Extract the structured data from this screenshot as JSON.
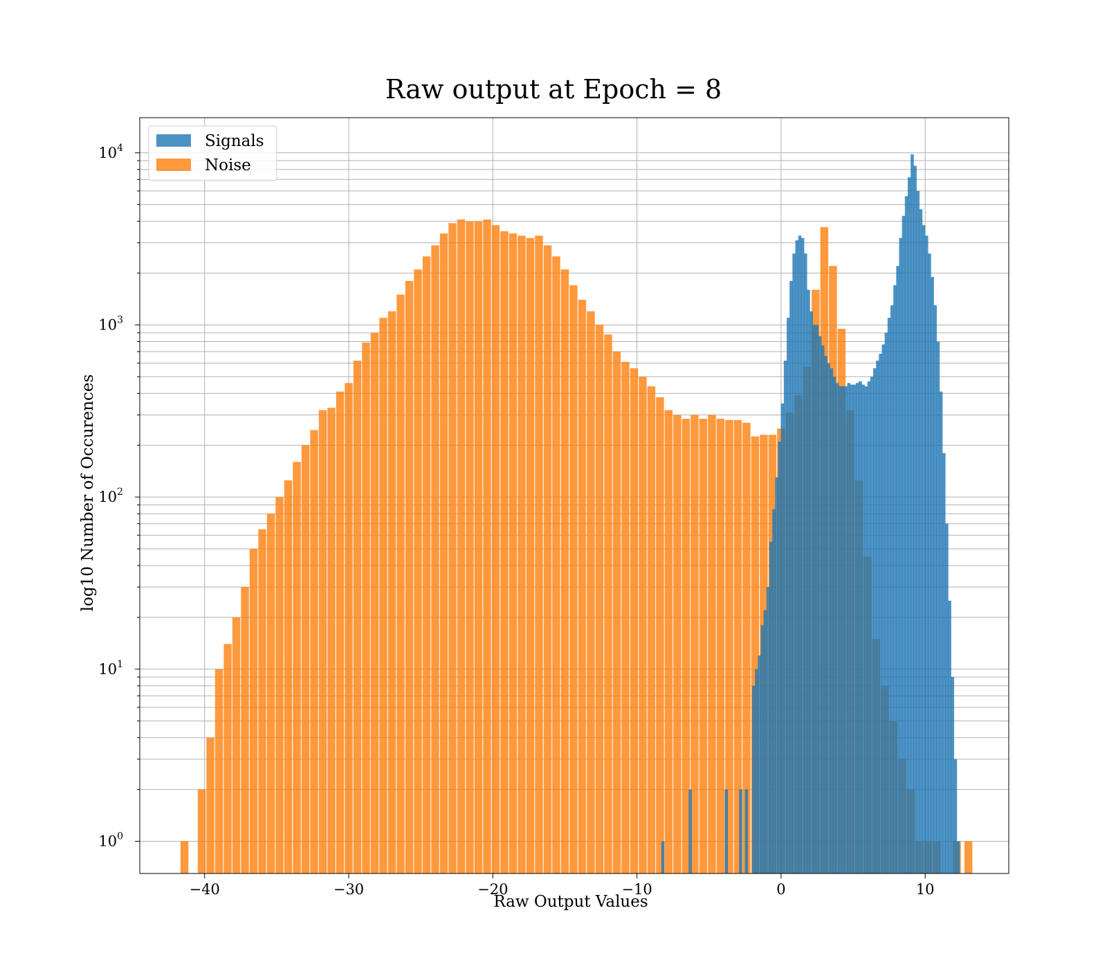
{
  "chart_data": {
    "type": "bar",
    "title": "Raw output at Epoch = 8",
    "xlabel": "Raw Output Values",
    "ylabel": "log10 Number of Occurences",
    "xlim": [
      -44.5,
      15.8
    ],
    "ylim": [
      0.65,
      16000
    ],
    "yscale": "log",
    "grid": true,
    "legend_position": "upper-left",
    "x_ticks": [
      -40,
      -30,
      -20,
      -10,
      0,
      10
    ],
    "x_tick_labels": [
      "−40",
      "−30",
      "−20",
      "−10",
      "0",
      "10"
    ],
    "y_ticks": [
      {
        "value": 1,
        "base": "10",
        "exp": "0"
      },
      {
        "value": 10,
        "base": "10",
        "exp": "1"
      },
      {
        "value": 100,
        "base": "10",
        "exp": "2"
      },
      {
        "value": 1000,
        "base": "10",
        "exp": "3"
      },
      {
        "value": 10000,
        "base": "10",
        "exp": "4"
      }
    ],
    "series": [
      {
        "name": "Signals",
        "color": "#1f77b4",
        "bin_width": 0.22,
        "bars": [
          [
            -8.2,
            1
          ],
          [
            -6.3,
            2
          ],
          [
            -3.8,
            2
          ],
          [
            -2.8,
            2
          ],
          [
            -2.4,
            2
          ],
          [
            -1.9,
            8
          ],
          [
            -1.7,
            10
          ],
          [
            -1.5,
            12
          ],
          [
            -1.3,
            18
          ],
          [
            -1.1,
            22
          ],
          [
            -0.9,
            30
          ],
          [
            -0.7,
            55
          ],
          [
            -0.5,
            85
          ],
          [
            -0.3,
            130
          ],
          [
            -0.1,
            210
          ],
          [
            0.1,
            350
          ],
          [
            0.3,
            620
          ],
          [
            0.5,
            1100
          ],
          [
            0.7,
            1800
          ],
          [
            0.9,
            2600
          ],
          [
            1.1,
            3100
          ],
          [
            1.3,
            3300
          ],
          [
            1.5,
            3200
          ],
          [
            1.7,
            2600
          ],
          [
            1.9,
            1600
          ],
          [
            2.1,
            1200
          ],
          [
            2.3,
            1000
          ],
          [
            2.5,
            1000
          ],
          [
            2.7,
            860
          ],
          [
            2.9,
            760
          ],
          [
            3.1,
            660
          ],
          [
            3.3,
            600
          ],
          [
            3.5,
            560
          ],
          [
            3.7,
            500
          ],
          [
            3.9,
            460
          ],
          [
            4.1,
            440
          ],
          [
            4.3,
            440
          ],
          [
            4.5,
            440
          ],
          [
            4.7,
            460
          ],
          [
            4.9,
            450
          ],
          [
            5.1,
            450
          ],
          [
            5.3,
            460
          ],
          [
            5.5,
            470
          ],
          [
            5.7,
            450
          ],
          [
            5.9,
            440
          ],
          [
            6.1,
            470
          ],
          [
            6.3,
            500
          ],
          [
            6.5,
            560
          ],
          [
            6.7,
            620
          ],
          [
            6.9,
            680
          ],
          [
            7.1,
            770
          ],
          [
            7.3,
            900
          ],
          [
            7.5,
            1100
          ],
          [
            7.7,
            1300
          ],
          [
            7.9,
            1700
          ],
          [
            8.1,
            2200
          ],
          [
            8.3,
            3200
          ],
          [
            8.5,
            4300
          ],
          [
            8.7,
            5600
          ],
          [
            8.9,
            7200
          ],
          [
            9.1,
            9800
          ],
          [
            9.3,
            8400
          ],
          [
            9.5,
            6000
          ],
          [
            9.7,
            4700
          ],
          [
            9.9,
            3800
          ],
          [
            10.1,
            3300
          ],
          [
            10.3,
            2600
          ],
          [
            10.5,
            1900
          ],
          [
            10.7,
            1300
          ],
          [
            10.9,
            800
          ],
          [
            11.1,
            410
          ],
          [
            11.3,
            180
          ],
          [
            11.5,
            70
          ],
          [
            11.7,
            25
          ],
          [
            11.9,
            9
          ],
          [
            12.1,
            3
          ],
          [
            12.3,
            1
          ]
        ]
      },
      {
        "name": "Noise",
        "color": "#ff7f0e",
        "bin_width": 0.55,
        "bars": [
          [
            -41.4,
            1
          ],
          [
            -40.2,
            2
          ],
          [
            -39.6,
            4
          ],
          [
            -39.0,
            10
          ],
          [
            -38.4,
            14
          ],
          [
            -37.8,
            20
          ],
          [
            -37.2,
            30
          ],
          [
            -36.6,
            50
          ],
          [
            -36.0,
            65
          ],
          [
            -35.4,
            80
          ],
          [
            -34.8,
            100
          ],
          [
            -34.2,
            125
          ],
          [
            -33.6,
            160
          ],
          [
            -33.0,
            200
          ],
          [
            -32.4,
            245
          ],
          [
            -31.8,
            320
          ],
          [
            -31.2,
            330
          ],
          [
            -30.6,
            410
          ],
          [
            -30.0,
            460
          ],
          [
            -29.4,
            620
          ],
          [
            -28.8,
            790
          ],
          [
            -28.2,
            900
          ],
          [
            -27.6,
            1100
          ],
          [
            -27.0,
            1200
          ],
          [
            -26.4,
            1500
          ],
          [
            -25.8,
            1800
          ],
          [
            -25.2,
            2100
          ],
          [
            -24.6,
            2500
          ],
          [
            -24.0,
            2900
          ],
          [
            -23.4,
            3400
          ],
          [
            -22.8,
            3900
          ],
          [
            -22.2,
            4100
          ],
          [
            -21.6,
            4000
          ],
          [
            -21.0,
            4000
          ],
          [
            -20.4,
            4100
          ],
          [
            -19.8,
            3800
          ],
          [
            -19.2,
            3500
          ],
          [
            -18.6,
            3400
          ],
          [
            -18.0,
            3300
          ],
          [
            -17.4,
            3200
          ],
          [
            -16.8,
            3300
          ],
          [
            -16.2,
            2900
          ],
          [
            -15.6,
            2500
          ],
          [
            -15.0,
            2100
          ],
          [
            -14.4,
            1700
          ],
          [
            -13.8,
            1400
          ],
          [
            -13.2,
            1200
          ],
          [
            -12.6,
            1000
          ],
          [
            -12.0,
            880
          ],
          [
            -11.4,
            700
          ],
          [
            -10.8,
            610
          ],
          [
            -10.2,
            560
          ],
          [
            -9.6,
            500
          ],
          [
            -9.0,
            440
          ],
          [
            -8.4,
            380
          ],
          [
            -7.8,
            320
          ],
          [
            -7.2,
            300
          ],
          [
            -6.6,
            285
          ],
          [
            -6.0,
            300
          ],
          [
            -5.4,
            285
          ],
          [
            -4.8,
            300
          ],
          [
            -4.2,
            285
          ],
          [
            -3.6,
            280
          ],
          [
            -3.0,
            280
          ],
          [
            -2.4,
            270
          ],
          [
            -1.8,
            225
          ],
          [
            -1.2,
            230
          ],
          [
            -0.6,
            230
          ],
          [
            0.0,
            250
          ],
          [
            0.6,
            310
          ],
          [
            1.2,
            390
          ],
          [
            1.8,
            570
          ],
          [
            2.4,
            1600
          ],
          [
            3.0,
            3700
          ],
          [
            3.6,
            2200
          ],
          [
            4.2,
            950
          ],
          [
            4.8,
            320
          ],
          [
            5.4,
            125
          ],
          [
            6.0,
            45
          ],
          [
            6.6,
            15
          ],
          [
            7.2,
            8
          ],
          [
            7.8,
            5
          ],
          [
            8.4,
            3
          ],
          [
            9.0,
            2
          ],
          [
            9.6,
            1
          ],
          [
            10.2,
            1
          ],
          [
            10.8,
            1
          ],
          [
            12.2,
            1
          ],
          [
            13.0,
            1
          ]
        ]
      }
    ]
  }
}
